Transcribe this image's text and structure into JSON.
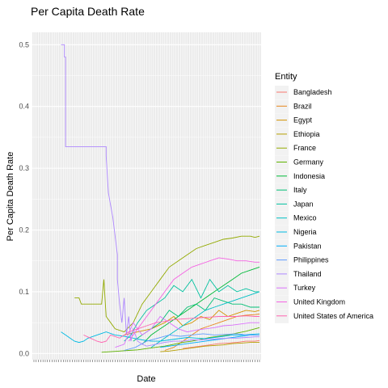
{
  "chart_data": {
    "type": "line",
    "title": "Per Capita Death Rate",
    "xlabel": "Date",
    "ylabel": "Per Capita Death Rate",
    "ylim": [
      -0.01,
      0.52
    ],
    "xlim": [
      0,
      100
    ],
    "y_ticks": [
      0.0,
      0.1,
      0.2,
      0.3,
      0.4,
      0.5
    ],
    "y_tick_labels": [
      "0.0",
      "0.1",
      "0.2",
      "0.3",
      "0.4",
      "0.5"
    ],
    "grid": true,
    "legend": {
      "title": "Entity",
      "position": "right"
    },
    "series": [
      {
        "name": "Bangladesh",
        "color": "#F8766D",
        "x": [
          66,
          70,
          74,
          78,
          82,
          86,
          90,
          94,
          98,
          100
        ],
        "values": [
          0.008,
          0.01,
          0.012,
          0.014,
          0.016,
          0.017,
          0.018,
          0.02,
          0.02,
          0.021
        ]
      },
      {
        "name": "Brazil",
        "color": "#E7861B",
        "x": [
          58,
          62,
          66,
          70,
          74,
          78,
          82,
          86,
          90,
          94,
          98,
          100
        ],
        "values": [
          0.005,
          0.01,
          0.02,
          0.03,
          0.04,
          0.045,
          0.05,
          0.055,
          0.06,
          0.062,
          0.063,
          0.064
        ]
      },
      {
        "name": "Egypt",
        "color": "#D39200",
        "x": [
          40,
          46,
          52,
          58,
          62,
          66,
          70,
          74,
          78,
          82,
          86,
          90,
          94,
          98,
          100
        ],
        "values": [
          0.03,
          0.035,
          0.04,
          0.05,
          0.06,
          0.045,
          0.05,
          0.06,
          0.055,
          0.07,
          0.06,
          0.065,
          0.07,
          0.068,
          0.07
        ]
      },
      {
        "name": "Ethiopia",
        "color": "#B79F00",
        "x": [
          56,
          60,
          64,
          68,
          72,
          76,
          80,
          84,
          88,
          92,
          96,
          100
        ],
        "values": [
          0.003,
          0.004,
          0.006,
          0.008,
          0.01,
          0.012,
          0.013,
          0.014,
          0.016,
          0.017,
          0.018,
          0.018
        ]
      },
      {
        "name": "France",
        "color": "#93AA00",
        "x": [
          18,
          20,
          21,
          23,
          25,
          27,
          30,
          31,
          32,
          34,
          36,
          40,
          44,
          48,
          52,
          56,
          60,
          64,
          68,
          72,
          76,
          80,
          84,
          88,
          92,
          96,
          98,
          100
        ],
        "values": [
          0.09,
          0.09,
          0.08,
          0.08,
          0.08,
          0.08,
          0.08,
          0.12,
          0.06,
          0.05,
          0.04,
          0.035,
          0.05,
          0.08,
          0.1,
          0.12,
          0.14,
          0.15,
          0.16,
          0.17,
          0.175,
          0.18,
          0.185,
          0.187,
          0.19,
          0.19,
          0.188,
          0.19
        ]
      },
      {
        "name": "Germany",
        "color": "#5EB300",
        "x": [
          30,
          34,
          38,
          42,
          46,
          50,
          54,
          58,
          62,
          66,
          70,
          74,
          78,
          82,
          86,
          90,
          94,
          98,
          100
        ],
        "values": [
          0.002,
          0.003,
          0.004,
          0.005,
          0.006,
          0.008,
          0.01,
          0.012,
          0.015,
          0.018,
          0.02,
          0.023,
          0.026,
          0.028,
          0.03,
          0.033,
          0.036,
          0.04,
          0.042
        ]
      },
      {
        "name": "Indonesia",
        "color": "#00BA38",
        "x": [
          48,
          52,
          56,
          60,
          64,
          68,
          72,
          76,
          80,
          84,
          88,
          92,
          96,
          100
        ],
        "values": [
          0.015,
          0.03,
          0.04,
          0.05,
          0.06,
          0.07,
          0.08,
          0.09,
          0.1,
          0.11,
          0.12,
          0.13,
          0.135,
          0.14
        ]
      },
      {
        "name": "Italy",
        "color": "#00BF74",
        "x": [
          44,
          48,
          52,
          56,
          60,
          64,
          68,
          72,
          76,
          80,
          84,
          88,
          92,
          96,
          100
        ],
        "values": [
          0.02,
          0.03,
          0.04,
          0.05,
          0.07,
          0.06,
          0.075,
          0.08,
          0.07,
          0.09,
          0.085,
          0.08,
          0.08,
          0.075,
          0.075
        ]
      },
      {
        "name": "Japan",
        "color": "#00C19F",
        "x": [
          40,
          43,
          46,
          50,
          54,
          58,
          60,
          62,
          66,
          70,
          74,
          78,
          82,
          86,
          90,
          94,
          98,
          100
        ],
        "values": [
          0.02,
          0.03,
          0.05,
          0.07,
          0.08,
          0.09,
          0.1,
          0.11,
          0.1,
          0.12,
          0.09,
          0.12,
          0.1,
          0.11,
          0.1,
          0.105,
          0.1,
          0.1
        ]
      },
      {
        "name": "Mexico",
        "color": "#00BFC4",
        "x": [
          52,
          56,
          60,
          64,
          68,
          72,
          76,
          80,
          84,
          88,
          92,
          96,
          100
        ],
        "values": [
          0.01,
          0.02,
          0.03,
          0.04,
          0.05,
          0.06,
          0.07,
          0.075,
          0.08,
          0.085,
          0.09,
          0.095,
          0.1
        ]
      },
      {
        "name": "Nigeria",
        "color": "#00B9E3",
        "x": [
          12,
          14,
          16,
          18,
          20,
          22,
          24,
          28,
          32,
          36,
          40,
          44,
          48,
          52,
          56,
          60,
          64,
          68,
          72,
          76,
          80,
          84,
          88,
          92,
          96,
          100
        ],
        "values": [
          0.035,
          0.03,
          0.025,
          0.02,
          0.018,
          0.02,
          0.025,
          0.03,
          0.035,
          0.03,
          0.028,
          0.025,
          0.022,
          0.02,
          0.02,
          0.022,
          0.024,
          0.026,
          0.025,
          0.024,
          0.026,
          0.028,
          0.03,
          0.03,
          0.031,
          0.032
        ]
      },
      {
        "name": "Pakistan",
        "color": "#00ADFA",
        "x": [
          56,
          60,
          64,
          68,
          72,
          76,
          80,
          84,
          88,
          92,
          96,
          100
        ],
        "values": [
          0.01,
          0.012,
          0.014,
          0.016,
          0.018,
          0.02,
          0.022,
          0.024,
          0.026,
          0.028,
          0.03,
          0.03
        ]
      },
      {
        "name": "Philippines",
        "color": "#619CFF",
        "x": [
          40,
          45,
          50,
          55,
          60,
          65,
          70,
          75,
          80,
          85,
          90,
          95,
          100
        ],
        "values": [
          0.005,
          0.01,
          0.02,
          0.025,
          0.03,
          0.028,
          0.03,
          0.032,
          0.03,
          0.031,
          0.032,
          0.03,
          0.03
        ]
      },
      {
        "name": "Thailand",
        "color": "#AE87FF",
        "x": [
          12,
          13.5,
          13.5,
          14,
          14,
          32,
          32,
          33,
          35,
          37,
          37,
          38,
          39,
          40,
          41,
          42,
          43,
          44,
          46,
          48,
          50,
          54,
          58,
          62,
          66,
          70,
          74,
          78,
          82,
          86,
          90,
          94,
          98,
          100
        ],
        "values": [
          0.5,
          0.5,
          0.48,
          0.48,
          0.335,
          0.335,
          0.32,
          0.26,
          0.22,
          0.16,
          0.12,
          0.08,
          0.05,
          0.09,
          0.03,
          0.06,
          0.02,
          0.04,
          0.02,
          0.015,
          0.012,
          0.015,
          0.018,
          0.02,
          0.02,
          0.022,
          0.022,
          0.023,
          0.024,
          0.025,
          0.025,
          0.026,
          0.027,
          0.027
        ]
      },
      {
        "name": "Turkey",
        "color": "#DB72FB",
        "x": [
          36,
          40,
          44,
          48,
          52,
          56,
          60,
          64,
          68,
          72,
          76,
          80,
          84,
          88,
          92,
          96,
          100
        ],
        "values": [
          0.01,
          0.015,
          0.05,
          0.03,
          0.04,
          0.06,
          0.05,
          0.04,
          0.035,
          0.038,
          0.04,
          0.042,
          0.045,
          0.046,
          0.048,
          0.05,
          0.05
        ]
      },
      {
        "name": "United Kingdom",
        "color": "#F564E3",
        "x": [
          42,
          46,
          50,
          54,
          58,
          62,
          66,
          70,
          74,
          78,
          82,
          86,
          90,
          94,
          98,
          100
        ],
        "values": [
          0.02,
          0.04,
          0.06,
          0.08,
          0.1,
          0.12,
          0.13,
          0.14,
          0.145,
          0.15,
          0.155,
          0.153,
          0.15,
          0.15,
          0.148,
          0.148
        ]
      },
      {
        "name": "United States of America",
        "color": "#FF64B0",
        "x": [
          22,
          25,
          28,
          30,
          32,
          34,
          38,
          42,
          46,
          50,
          54,
          58,
          62,
          66,
          70,
          74,
          78,
          82,
          86,
          90,
          94,
          98,
          100
        ],
        "values": [
          0.03,
          0.025,
          0.02,
          0.018,
          0.02,
          0.03,
          0.025,
          0.035,
          0.04,
          0.045,
          0.05,
          0.052,
          0.055,
          0.056,
          0.057,
          0.058,
          0.059,
          0.06,
          0.06,
          0.06,
          0.061,
          0.06,
          0.06
        ]
      }
    ]
  }
}
